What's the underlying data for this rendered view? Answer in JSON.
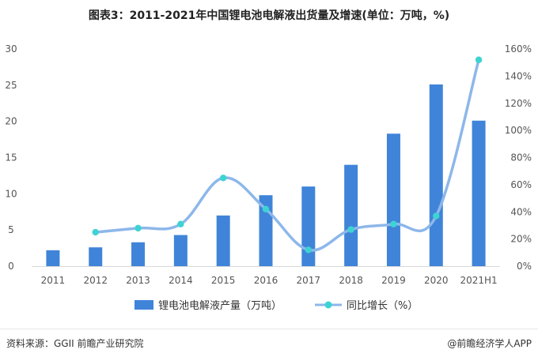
{
  "title": "图表3：2011-2021年中国锂电池电解液出货量及增速(单位：万吨，%)",
  "footer": {
    "source": "资料来源：GGII 前瞻产业研究院",
    "brand": "@前瞻经济学人APP"
  },
  "chart_data": {
    "type": "bar",
    "categories": [
      "2011",
      "2012",
      "2013",
      "2014",
      "2015",
      "2016",
      "2017",
      "2018",
      "2019",
      "2020",
      "2021H1"
    ],
    "series": [
      {
        "name": "锂电池电解液产量（万吨）",
        "type": "bar",
        "axis": "left",
        "values": [
          2.2,
          2.6,
          3.3,
          4.3,
          7.0,
          9.8,
          11.0,
          14.0,
          18.3,
          25.1,
          20.1
        ]
      },
      {
        "name": "同比增长（%）",
        "type": "line",
        "axis": "right",
        "values": [
          null,
          25,
          28,
          31,
          65,
          42,
          12,
          27,
          31,
          37,
          152
        ]
      }
    ],
    "y_left": {
      "min": 0,
      "max": 30,
      "ticks": [
        "0",
        "5",
        "10",
        "15",
        "20",
        "25",
        "30"
      ]
    },
    "y_right": {
      "min": 0,
      "max": 160,
      "ticks": [
        "0%",
        "20%",
        "40%",
        "60%",
        "80%",
        "100%",
        "120%",
        "140%",
        "160%"
      ]
    },
    "legend_position": "bottom",
    "grid": false,
    "colors": {
      "bar": "#3f84d9",
      "line": "#8db7ea",
      "marker": "#3ed3d3"
    }
  }
}
